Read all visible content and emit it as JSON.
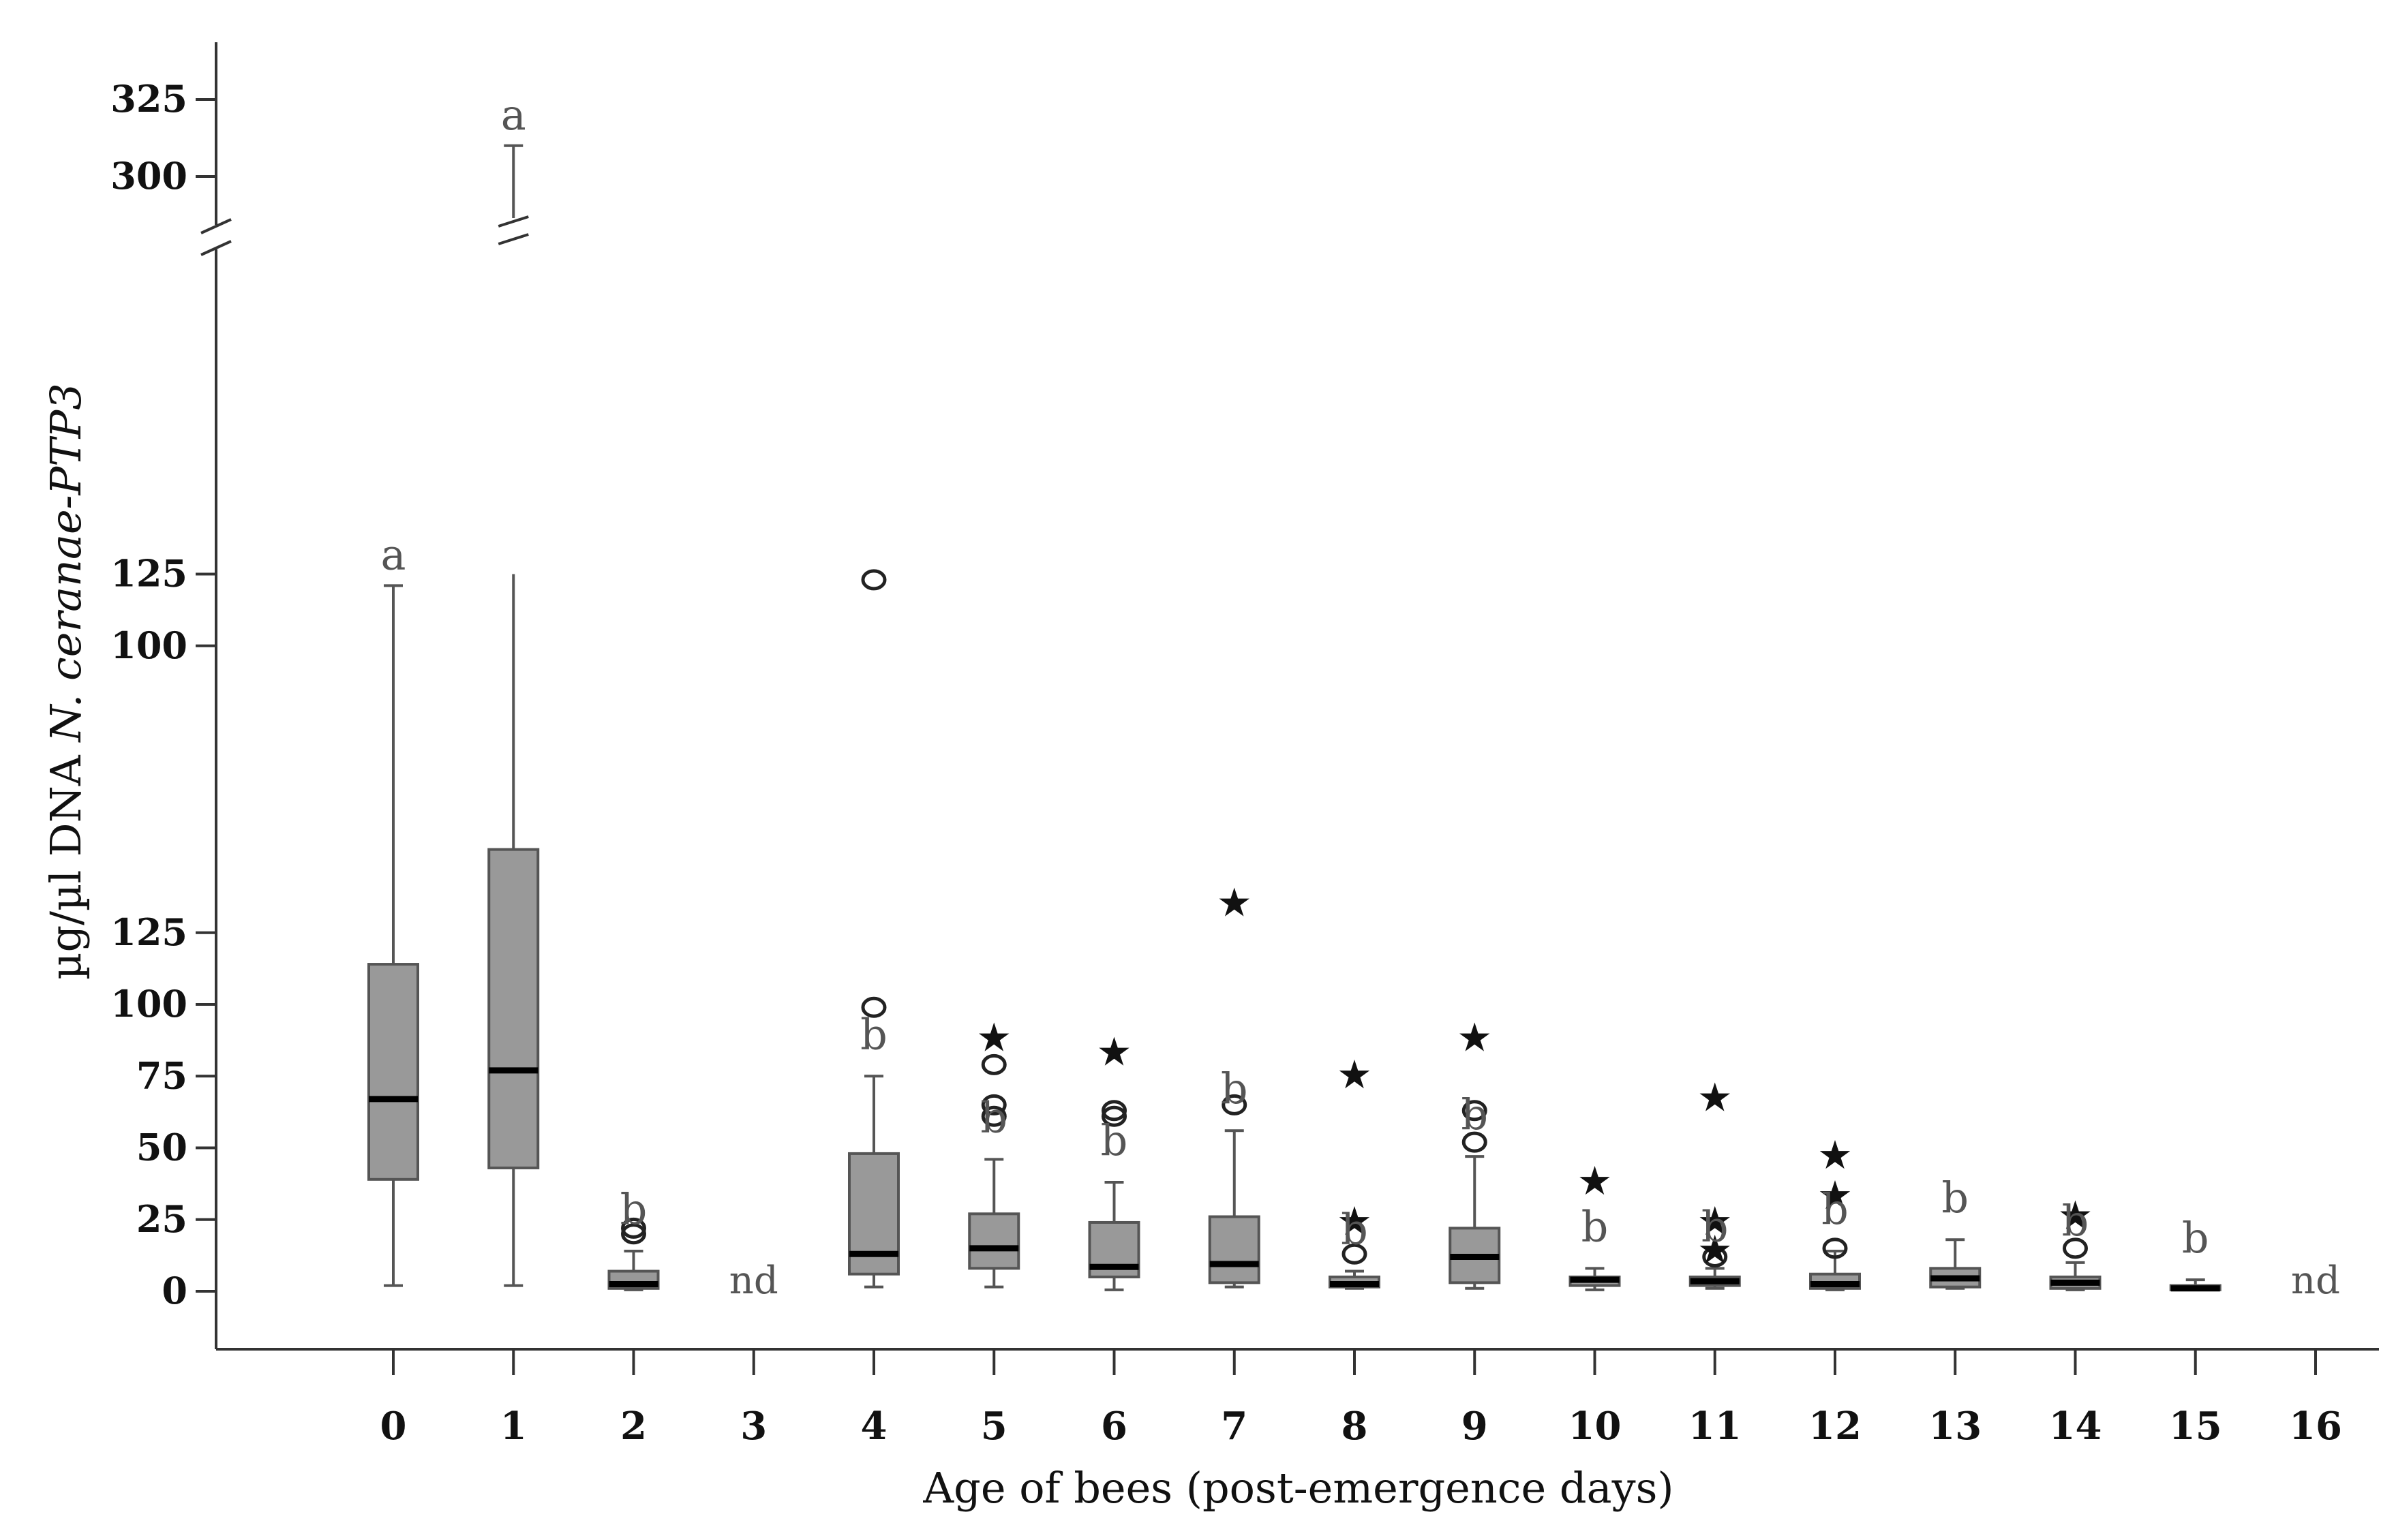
{
  "chart_data": {
    "type": "box",
    "xlabel": "Age of bees (post-emergence  days)",
    "ylabel_prefix": "µg/µl DNA ",
    "ylabel_italic": "N. ceranae-PTP3",
    "y_ticks_lower": [
      "0",
      "25",
      "50",
      "75",
      "100",
      "125"
    ],
    "y_ticks_lower_values": [
      0,
      25,
      50,
      75,
      100,
      125
    ],
    "y_ticks_upper": [
      "100",
      "125"
    ],
    "y_ticks_upper_values": [
      225,
      250
    ],
    "y_ticks_top": [
      "300",
      "325"
    ],
    "y_ticks_top_values": [
      300,
      325
    ],
    "x_categories": [
      "0",
      "1",
      "2",
      "3",
      "4",
      "5",
      "6",
      "7",
      "8",
      "9",
      "10",
      "11",
      "12",
      "13",
      "14",
      "15",
      "16"
    ],
    "boxes": [
      {
        "day": "0",
        "min": 2,
        "q1": 39,
        "median": 67,
        "q3": 114,
        "max": 246,
        "letter": "a",
        "outliers": [],
        "extremes": []
      },
      {
        "day": "1",
        "min": 2,
        "q1": 43,
        "median": 77,
        "q3": 154,
        "max": 310,
        "letter": "a",
        "outliers": [],
        "extremes": []
      },
      {
        "day": "2",
        "min": 0.5,
        "q1": 1,
        "median": 2.5,
        "q3": 7,
        "max": 14,
        "letter": "b",
        "outliers": [
          20,
          22
        ],
        "extremes": []
      },
      {
        "day": "3",
        "nd": true,
        "label": "nd"
      },
      {
        "day": "4",
        "min": 1.5,
        "q1": 6,
        "median": 13,
        "q3": 48,
        "max": 75,
        "letter": "b",
        "outliers": [
          99,
          248
        ],
        "extremes": []
      },
      {
        "day": "5",
        "min": 1.5,
        "q1": 8,
        "median": 15,
        "q3": 27,
        "max": 46,
        "letter": "b",
        "outliers": [
          61,
          65,
          79
        ],
        "extremes": [
          89
        ]
      },
      {
        "day": "6",
        "min": 0.5,
        "q1": 5,
        "median": 8.5,
        "q3": 24,
        "max": 38,
        "letter": "b",
        "outliers": [
          61,
          63
        ],
        "extremes": [
          84
        ]
      },
      {
        "day": "7",
        "min": 1.5,
        "q1": 3,
        "median": 9.5,
        "q3": 26,
        "max": 56,
        "letter": "b",
        "outliers": [
          65
        ],
        "extremes": [
          136
        ]
      },
      {
        "day": "8",
        "min": 1,
        "q1": 1.5,
        "median": 2.5,
        "q3": 5,
        "max": 7,
        "letter": "b",
        "outliers": [
          13
        ],
        "extremes": [
          25,
          76
        ]
      },
      {
        "day": "9",
        "min": 1,
        "q1": 3,
        "median": 12,
        "q3": 22,
        "max": 47,
        "letter": "b",
        "outliers": [
          52,
          63
        ],
        "extremes": [
          89
        ]
      },
      {
        "day": "10",
        "min": 0.5,
        "q1": 2,
        "median": 4,
        "q3": 5,
        "max": 8,
        "letter": "b",
        "outliers": [],
        "extremes": [
          39
        ]
      },
      {
        "day": "11",
        "min": 1,
        "q1": 2,
        "median": 3.5,
        "q3": 5,
        "max": 8,
        "letter": "b",
        "outliers": [
          12
        ],
        "extremes": [
          15,
          25,
          68
        ]
      },
      {
        "day": "12",
        "min": 0.5,
        "q1": 1,
        "median": 2.5,
        "q3": 6,
        "max": 14,
        "letter": "b",
        "outliers": [
          15
        ],
        "extremes": [
          34,
          48
        ]
      },
      {
        "day": "13",
        "min": 1,
        "q1": 1.5,
        "median": 4.5,
        "q3": 8,
        "max": 18,
        "letter": "b",
        "outliers": [],
        "extremes": []
      },
      {
        "day": "14",
        "min": 0.5,
        "q1": 1,
        "median": 3,
        "q3": 5,
        "max": 10,
        "letter": "b",
        "outliers": [
          15
        ],
        "extremes": [
          27
        ]
      },
      {
        "day": "15",
        "min": 0.5,
        "q1": 0.5,
        "median": 1,
        "q3": 2,
        "max": 4,
        "letter": "b",
        "outliers": [],
        "extremes": []
      },
      {
        "day": "16",
        "nd": true,
        "label": "nd"
      }
    ],
    "colors": {
      "box_fill": "#999999",
      "box_stroke": "#555555",
      "median": "#000000",
      "axis": "#333333",
      "letter": "#555555"
    }
  }
}
